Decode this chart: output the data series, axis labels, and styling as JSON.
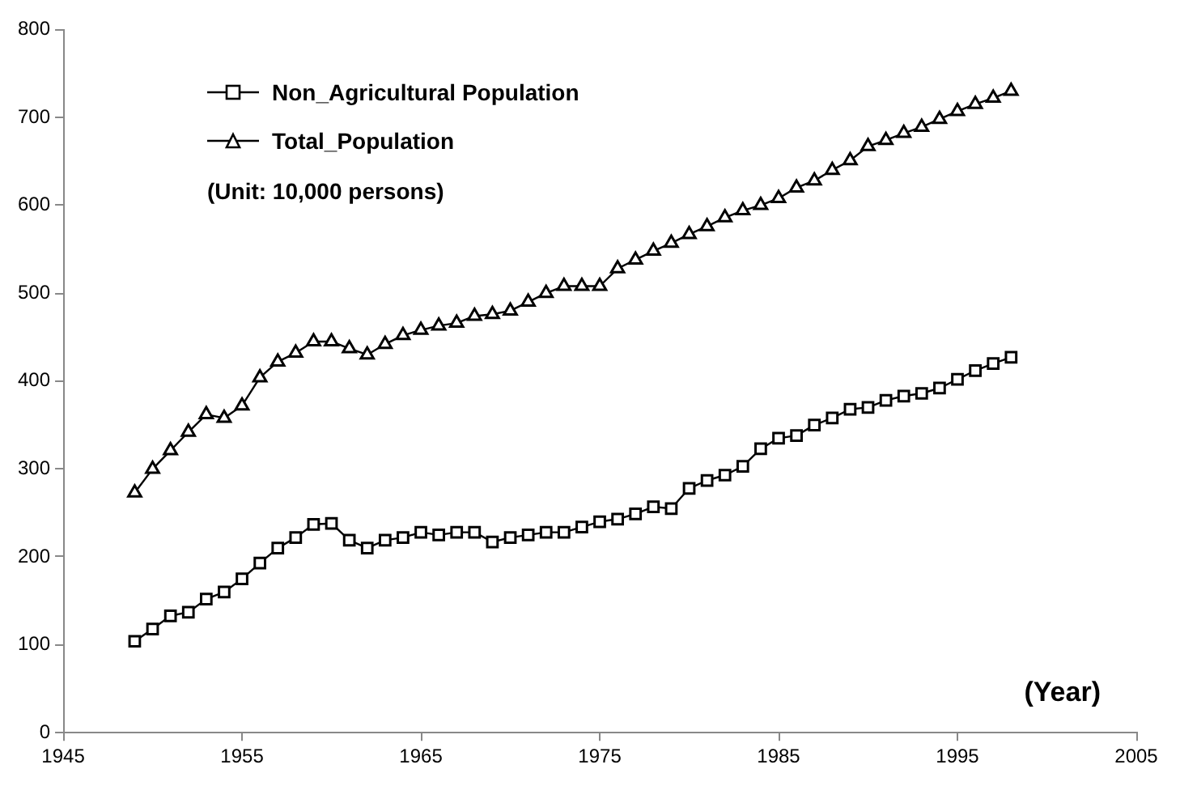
{
  "chart_data": {
    "type": "line",
    "xlabel": "(Year)",
    "annotations": [
      "(Unit: 10,000 persons)"
    ],
    "x": [
      1949,
      1950,
      1951,
      1952,
      1953,
      1954,
      1955,
      1956,
      1957,
      1958,
      1959,
      1960,
      1961,
      1962,
      1963,
      1964,
      1965,
      1966,
      1967,
      1968,
      1969,
      1970,
      1971,
      1972,
      1973,
      1974,
      1975,
      1976,
      1977,
      1978,
      1979,
      1980,
      1981,
      1982,
      1983,
      1984,
      1985,
      1986,
      1987,
      1988,
      1989,
      1990,
      1991,
      1992,
      1993,
      1994,
      1995,
      1996,
      1997,
      1998
    ],
    "series": [
      {
        "name": "Non_Agricultural Population",
        "color": "#000000",
        "marker": "square",
        "values": [
          104,
          118,
          133,
          137,
          152,
          160,
          175,
          193,
          210,
          222,
          237,
          238,
          219,
          210,
          219,
          222,
          228,
          225,
          228,
          228,
          217,
          222,
          225,
          228,
          228,
          234,
          240,
          243,
          249,
          257,
          255,
          278,
          287,
          293,
          303,
          323,
          335,
          338,
          350,
          358,
          368,
          370,
          378,
          383,
          386,
          392,
          402,
          412,
          420,
          427
        ]
      },
      {
        "name": "Total_Population",
        "color": "#000000",
        "marker": "triangle",
        "values": [
          273,
          300,
          321,
          342,
          362,
          358,
          372,
          404,
          422,
          432,
          445,
          445,
          437,
          430,
          442,
          452,
          458,
          463,
          466,
          474,
          476,
          480,
          490,
          500,
          508,
          508,
          508,
          528,
          538,
          548,
          557,
          567,
          576,
          586,
          594,
          600,
          608,
          620,
          628,
          640,
          651,
          667,
          674,
          682,
          689,
          698,
          707,
          715,
          722,
          730
        ]
      }
    ],
    "xlim": [
      1945,
      2005
    ],
    "xticks": [
      1945,
      1955,
      1965,
      1975,
      1985,
      1995,
      2005
    ],
    "ylim": [
      0,
      800
    ],
    "yticks": [
      0,
      100,
      200,
      300,
      400,
      500,
      600,
      700,
      800
    ],
    "grid": false,
    "legend": "top left",
    "line_style": "solid"
  }
}
